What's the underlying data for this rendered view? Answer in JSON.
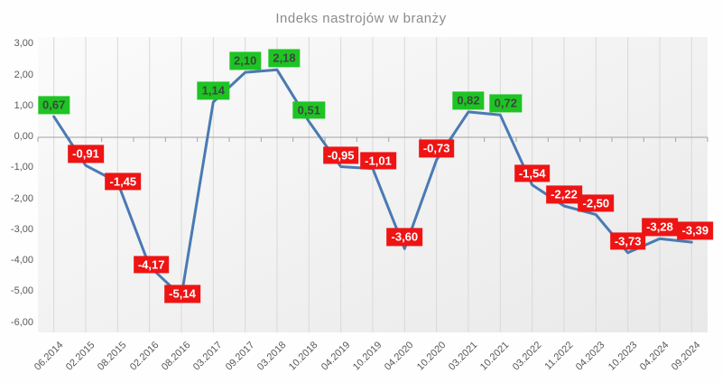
{
  "title": "Indeks nastrojów w branży",
  "chart_data": {
    "type": "line",
    "title": "Indeks nastrojów w branży",
    "categories": [
      "06.2014",
      "02.2015",
      "08.2015",
      "02.2016",
      "08.2016",
      "03.2017",
      "09.2017",
      "03.2018",
      "10.2018",
      "04.2019",
      "10.2019",
      "04.2020",
      "10.2020",
      "03.2021",
      "10.2021",
      "03.2022",
      "11.2022",
      "04.2023",
      "10.2023",
      "04.2024",
      "09.2024"
    ],
    "values": [
      0.67,
      -0.91,
      -1.45,
      -4.17,
      -5.14,
      1.14,
      2.1,
      2.18,
      0.51,
      -0.95,
      -1.01,
      -3.6,
      -0.73,
      0.82,
      0.72,
      -1.54,
      -2.22,
      -2.5,
      -3.73,
      -3.28,
      -3.39
    ],
    "value_labels": [
      "0,67",
      "-0,91",
      "-1,45",
      "-4,17",
      "-5,14",
      "1,14",
      "2,10",
      "2,18",
      "0,51",
      "-0,95",
      "-1,01",
      "-3,60",
      "-0,73",
      "0,82",
      "0,72",
      "-1,54",
      "-2,22",
      "-2,50",
      "-3,73",
      "-3,28",
      "-3,39"
    ],
    "ylim": [
      -6,
      3
    ],
    "ytick_values": [
      3,
      2,
      1,
      0,
      -1,
      -2,
      -3,
      -4,
      -5,
      -6
    ],
    "ytick_labels": [
      "3,00",
      "2,00",
      "1,00",
      "0,00",
      "-1,00",
      "-2,00",
      "-3,00",
      "-4,00",
      "-5,00",
      "-6,00"
    ],
    "xlabel": "",
    "ylabel": "",
    "legend": "none",
    "grid": "vertical-category-gridlines, zero-axis-with-ticks",
    "colors": {
      "line": "#4a7ab3",
      "gridline": "#d9d9d9",
      "zero_axis": "#a3a3a3",
      "positive_label_bg": "#1ec423",
      "positive_label_text": "#3e463e",
      "negative_label_bg": "#ee1414",
      "negative_label_text": "#ffffff",
      "title_text": "#8b8b8b",
      "axis_text": "#595959",
      "plot_bg_top": "#fbfbfb",
      "plot_bg_bottom": "#e8e9e8"
    }
  }
}
